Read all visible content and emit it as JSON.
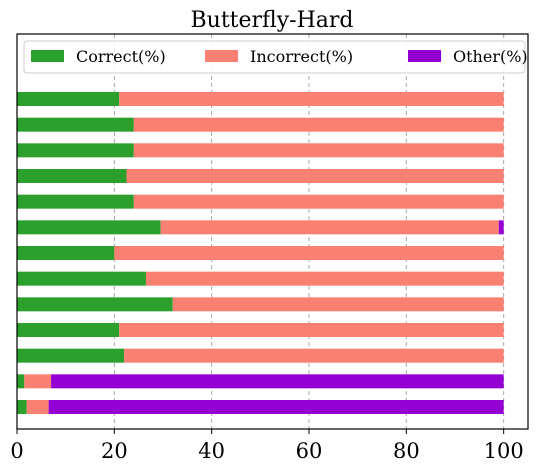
{
  "chart_data": {
    "type": "bar",
    "orientation": "horizontal",
    "stacked": true,
    "title": "Butterfly-Hard",
    "xlabel": "",
    "ylabel": "",
    "xlim": [
      0,
      105
    ],
    "xticks": [
      0,
      20,
      40,
      60,
      80,
      100
    ],
    "grid": "x-dashed",
    "legend_position": "top",
    "legend_columns": 3,
    "categories": [
      "",
      "",
      "",
      "",
      "",
      "",
      "",
      "",
      "",
      "",
      "",
      "",
      ""
    ],
    "series": [
      {
        "name": "Correct(%)",
        "color": "#2ca02c",
        "values": [
          21.0,
          24.0,
          24.0,
          22.5,
          24.0,
          29.5,
          20.0,
          26.5,
          32.0,
          21.0,
          22.0,
          1.5,
          2.0
        ]
      },
      {
        "name": "Incorrect(%)",
        "color": "#fa8072",
        "values": [
          79.0,
          76.0,
          76.0,
          77.5,
          76.0,
          69.5,
          80.0,
          73.5,
          68.0,
          79.0,
          78.0,
          5.5,
          4.5
        ]
      },
      {
        "name": "Other(%)",
        "color": "#9400d3",
        "values": [
          0,
          0,
          0,
          0,
          0,
          1.0,
          0,
          0,
          0,
          0,
          0,
          93.0,
          93.5
        ]
      }
    ]
  }
}
